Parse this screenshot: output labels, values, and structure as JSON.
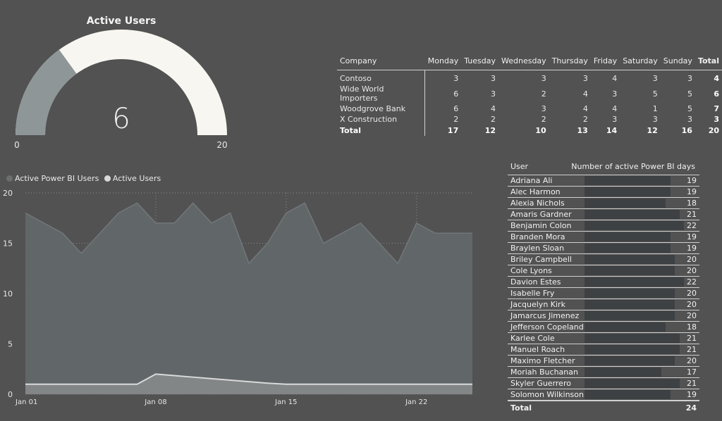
{
  "gauge": {
    "title": "Active Users",
    "value": "6",
    "min": "0",
    "max": "20",
    "value_num": 6,
    "min_num": 0,
    "max_num": 20,
    "fill_color": "#8e9698",
    "track_color": "#f8f6f0"
  },
  "matrix": {
    "headers": [
      "Company",
      "Monday",
      "Tuesday",
      "Wednesday",
      "Thursday",
      "Friday",
      "Saturday",
      "Sunday",
      "Total"
    ],
    "rows": [
      [
        "Contoso",
        "3",
        "3",
        "3",
        "3",
        "4",
        "3",
        "3",
        "4"
      ],
      [
        "Wide World Importers",
        "6",
        "3",
        "2",
        "4",
        "3",
        "5",
        "5",
        "6"
      ],
      [
        "Woodgrove Bank",
        "6",
        "4",
        "3",
        "4",
        "4",
        "1",
        "5",
        "7"
      ],
      [
        "X Construction",
        "2",
        "2",
        "2",
        "2",
        "3",
        "3",
        "3",
        "3"
      ]
    ],
    "total_row": [
      "Total",
      "17",
      "12",
      "10",
      "13",
      "14",
      "12",
      "16",
      "20"
    ]
  },
  "users_table": {
    "headers": [
      "User",
      "Number of active Power BI days"
    ],
    "rows": [
      {
        "name": "Adriana Ali",
        "days": "19",
        "bar_max": 22
      },
      {
        "name": "Alec Harmon",
        "days": "19"
      },
      {
        "name": "Alexia Nichols",
        "days": "18"
      },
      {
        "name": "Amaris Gardner",
        "days": "21"
      },
      {
        "name": "Benjamin Colon",
        "days": "22"
      },
      {
        "name": "Branden Mora",
        "days": "19"
      },
      {
        "name": "Braylen Sloan",
        "days": "19"
      },
      {
        "name": "Briley Campbell",
        "days": "20"
      },
      {
        "name": "Cole Lyons",
        "days": "20"
      },
      {
        "name": "Davion Estes",
        "days": "22"
      },
      {
        "name": "Isabelle Fry",
        "days": "20"
      },
      {
        "name": "Jacquelyn Kirk",
        "days": "20"
      },
      {
        "name": "Jamarcus Jimenez",
        "days": "20"
      },
      {
        "name": "Jefferson Copeland",
        "days": "18"
      },
      {
        "name": "Karlee Cole",
        "days": "21"
      },
      {
        "name": "Manuel Roach",
        "days": "21"
      },
      {
        "name": "Maximo Fletcher",
        "days": "20"
      },
      {
        "name": "Moriah Buchanan",
        "days": "17"
      },
      {
        "name": "Skyler Guerrero",
        "days": "21"
      },
      {
        "name": "Solomon Wilkinson",
        "days": "19"
      }
    ],
    "total_label": "Total",
    "total_value": "24",
    "bar_color": "#3d4143"
  },
  "chart_data": {
    "type": "area",
    "legend": [
      {
        "name": "Active Power BI Users",
        "color": "#6a6e6e"
      },
      {
        "name": "Active Users",
        "color": "#d9d9d9"
      }
    ],
    "legend_position": "top-left",
    "x_ticks": [
      "Jan 01",
      "Jan 08",
      "Jan 15",
      "Jan 22"
    ],
    "x_tick_days": [
      1,
      8,
      15,
      22
    ],
    "y_ticks": [
      "0",
      "5",
      "10",
      "15",
      "20"
    ],
    "ylim": [
      0,
      20
    ],
    "xlim": [
      1,
      25
    ],
    "grid": true,
    "series": [
      {
        "name": "Active Power BI Users",
        "color": "#62676a",
        "line_color": "#72777a",
        "points": [
          [
            1,
            18
          ],
          [
            2,
            17
          ],
          [
            3,
            16
          ],
          [
            4,
            14
          ],
          [
            5,
            16
          ],
          [
            6,
            18
          ],
          [
            7,
            19
          ],
          [
            8,
            17
          ],
          [
            9,
            17
          ],
          [
            10,
            19
          ],
          [
            11,
            17
          ],
          [
            12,
            18
          ],
          [
            13,
            13
          ],
          [
            14,
            15
          ],
          [
            15,
            18
          ],
          [
            16,
            19
          ],
          [
            17,
            15
          ],
          [
            18,
            16
          ],
          [
            19,
            17
          ],
          [
            20,
            15
          ],
          [
            21,
            13
          ],
          [
            22,
            17
          ],
          [
            23,
            16
          ],
          [
            24,
            16
          ],
          [
            25,
            16
          ]
        ]
      },
      {
        "name": "Active Users",
        "color": "#848889",
        "line_color": "#d9d9d9",
        "points": [
          [
            1,
            1
          ],
          [
            2,
            1
          ],
          [
            3,
            1
          ],
          [
            4,
            1
          ],
          [
            5,
            1
          ],
          [
            6,
            1
          ],
          [
            7,
            1
          ],
          [
            8,
            2
          ],
          [
            9,
            1.85
          ],
          [
            10,
            1.7
          ],
          [
            11,
            1.55
          ],
          [
            12,
            1.4
          ],
          [
            13,
            1.25
          ],
          [
            14,
            1.1
          ],
          [
            15,
            1
          ],
          [
            16,
            1
          ],
          [
            17,
            1
          ],
          [
            18,
            1
          ],
          [
            19,
            1
          ],
          [
            20,
            1
          ],
          [
            21,
            1
          ],
          [
            22,
            1
          ],
          [
            23,
            1
          ],
          [
            24,
            1
          ],
          [
            25,
            1
          ]
        ]
      }
    ]
  }
}
